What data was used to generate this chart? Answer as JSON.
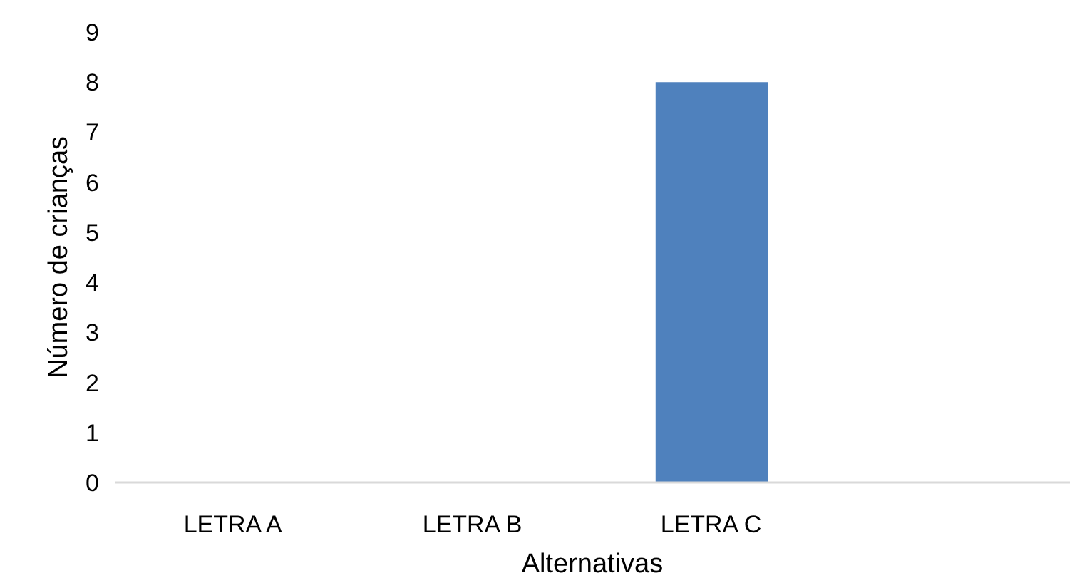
{
  "chart_data": {
    "type": "bar",
    "xlabel": "Alternativas",
    "ylabel": "Número de crianças",
    "categories": [
      "LETRA A",
      "LETRA B",
      "LETRA C",
      null
    ],
    "values": [
      0,
      0,
      8,
      0
    ],
    "color": "#4f81bd",
    "ylim": [
      0,
      9
    ],
    "yticks": [
      0,
      1,
      2,
      3,
      4,
      5,
      6,
      7,
      8,
      9
    ],
    "grid": false
  }
}
